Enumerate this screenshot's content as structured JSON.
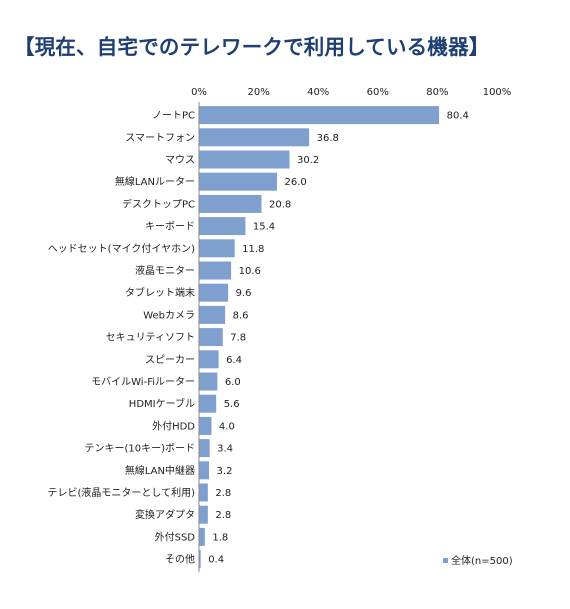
{
  "chart_data": {
    "type": "bar",
    "orientation": "horizontal",
    "title": "【現在、自宅でのテレワークで利用している機器】",
    "categories": [
      "ノートPC",
      "スマートフォン",
      "マウス",
      "無線LANルーター",
      "デスクトップPC",
      "キーボード",
      "ヘッドセット(マイク付イヤホン)",
      "液晶モニター",
      "タブレット端末",
      "Webカメラ",
      "セキュリティソフト",
      "スピーカー",
      "モバイルWi-Fiルーター",
      "HDMIケーブル",
      "外付HDD",
      "テンキー(10キー)ボード",
      "無線LAN中継器",
      "テレビ(液晶モニターとして利用)",
      "変換アダプタ",
      "外付SSD",
      "その他"
    ],
    "series": [
      {
        "name": "全体(n=500)",
        "values": [
          80.4,
          36.8,
          30.2,
          26.0,
          20.8,
          15.4,
          11.8,
          10.6,
          9.6,
          8.6,
          7.8,
          6.4,
          6.0,
          5.6,
          4.0,
          3.4,
          3.2,
          2.8,
          2.8,
          1.8,
          0.4
        ],
        "value_labels": [
          "80.4",
          "36.8",
          "30.2",
          "26.0",
          "20.8",
          "15.4",
          "11.8",
          "10.6",
          "9.6",
          "8.6",
          "7.8",
          "6.4",
          "6.0",
          "5.6",
          "4.0",
          "3.4",
          "3.2",
          "2.8",
          "2.8",
          "1.8",
          "0.4"
        ],
        "color": "#7f9fcf"
      }
    ],
    "xlim": [
      0,
      100
    ],
    "x_ticks": [
      "0%",
      "20%",
      "40%",
      "60%",
      "80%",
      "100%"
    ],
    "grid": false,
    "legend": "bottom-right"
  }
}
